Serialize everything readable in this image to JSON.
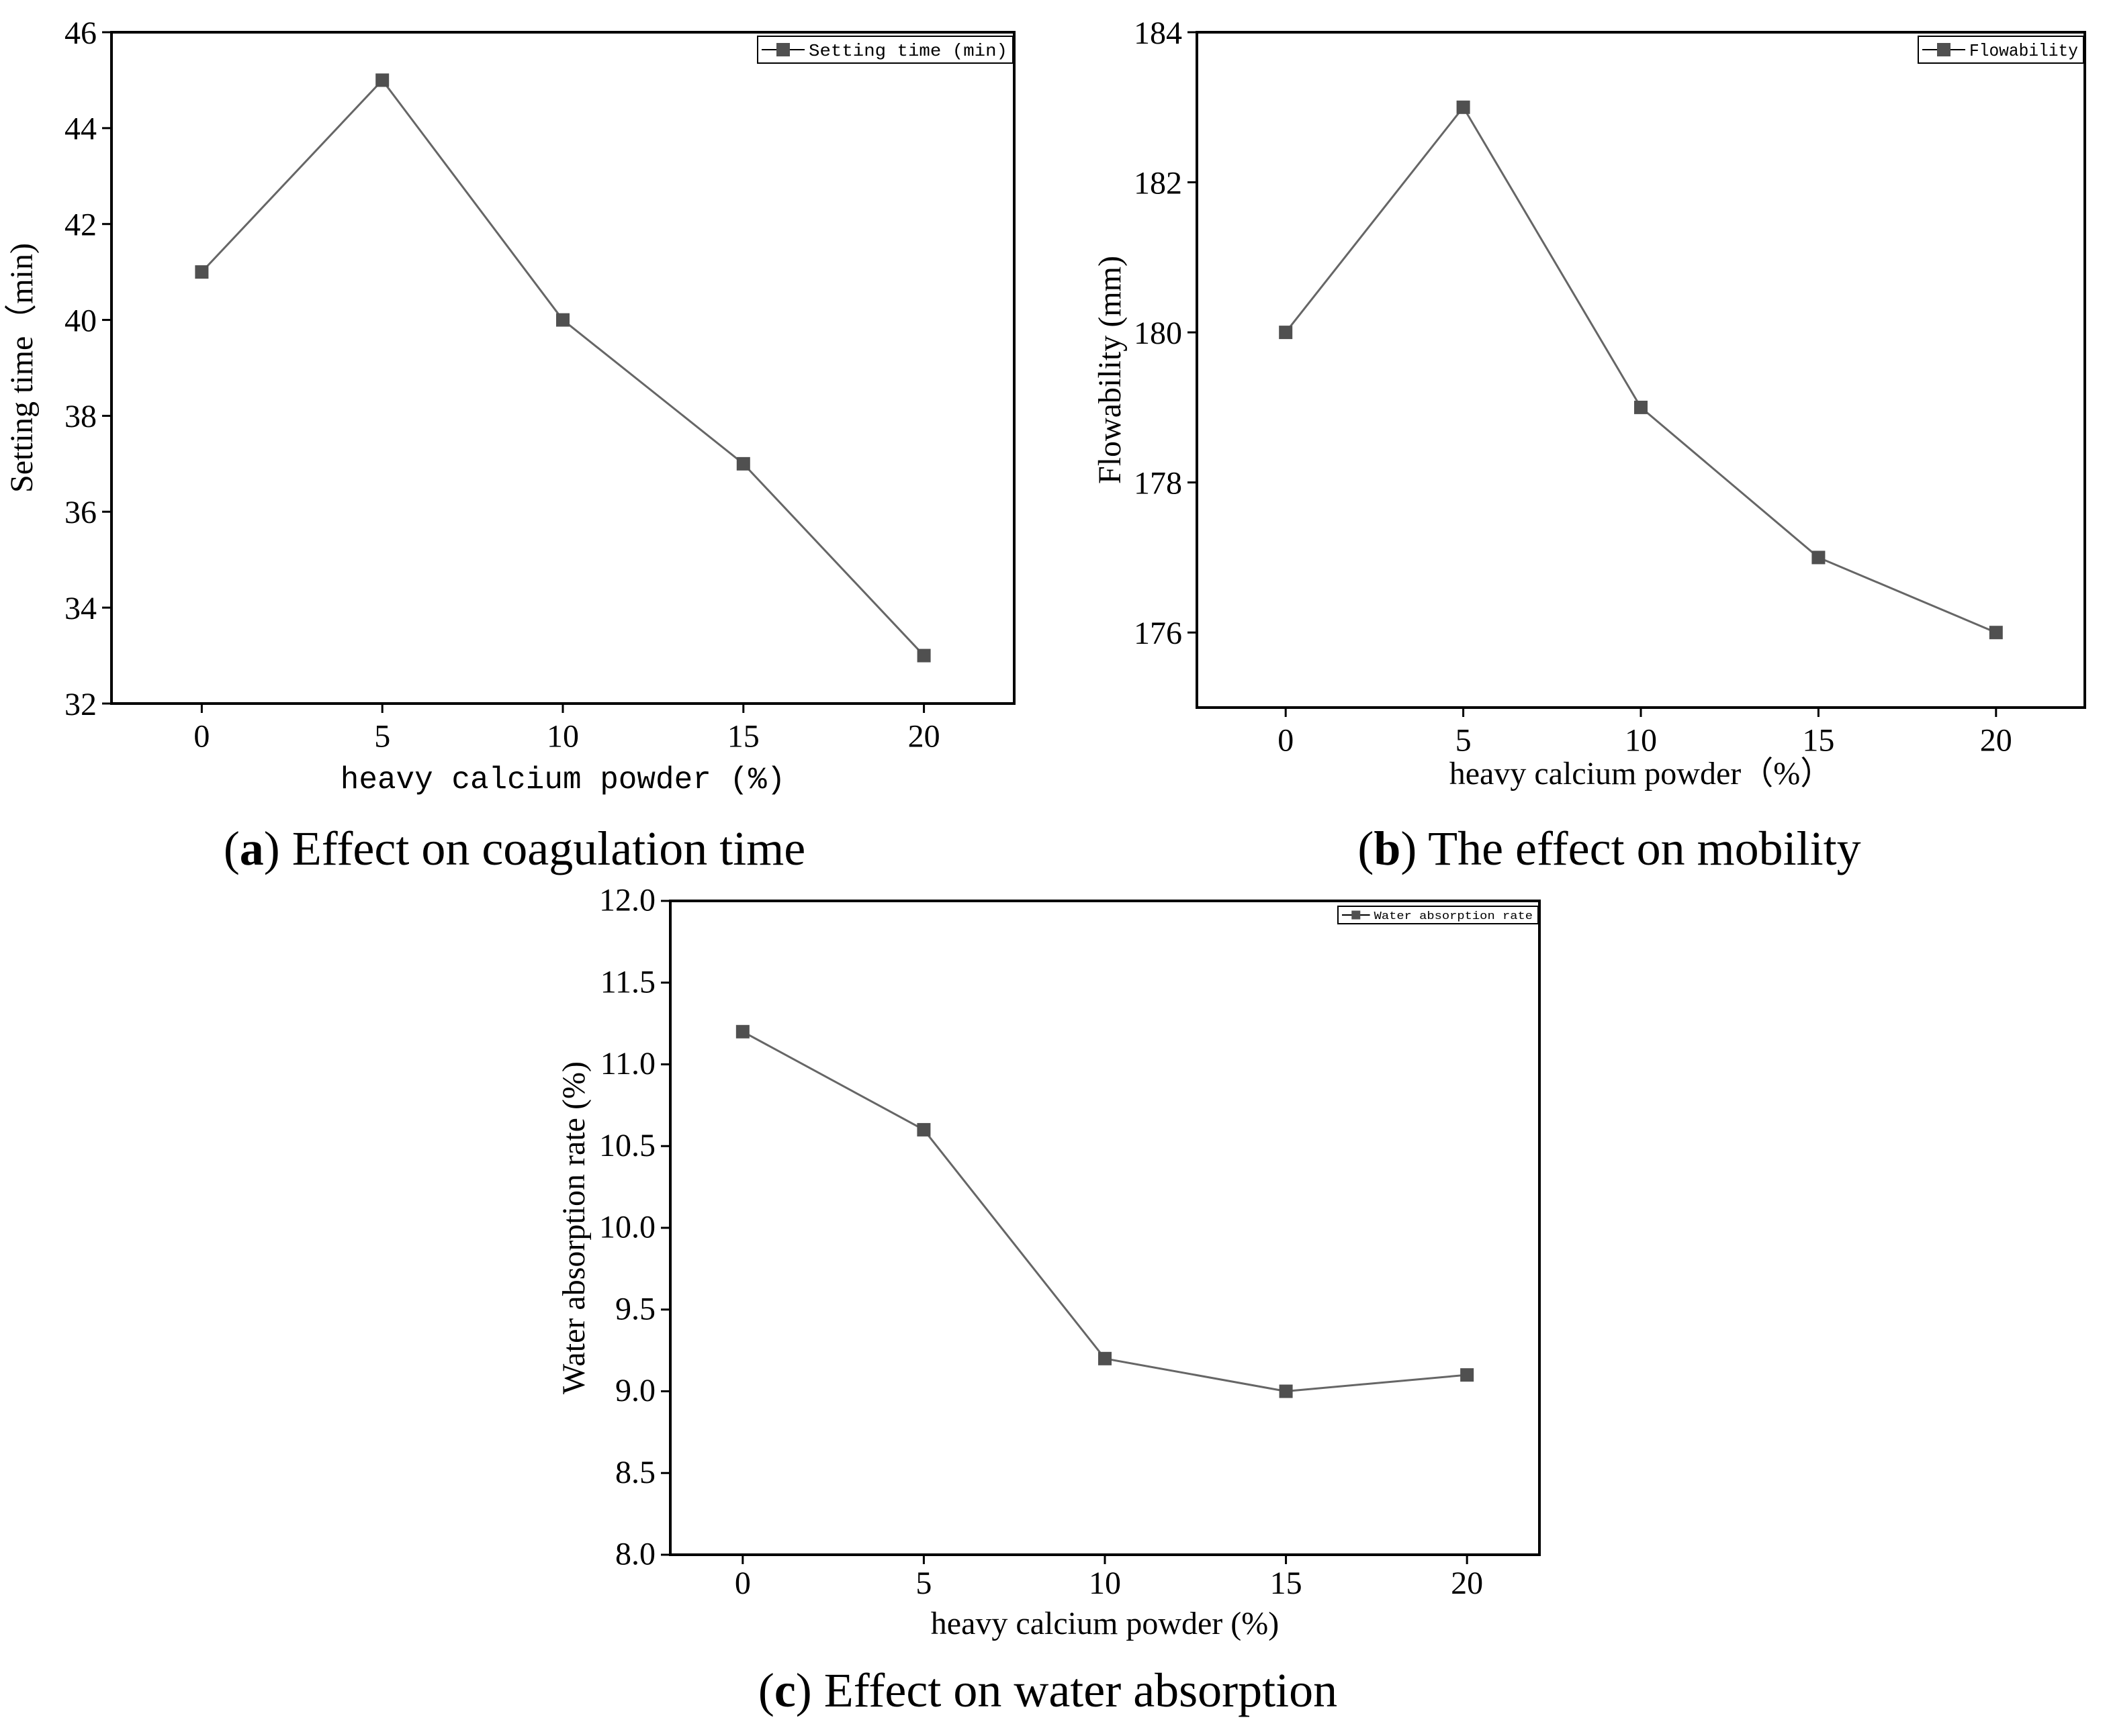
{
  "chart_data": [
    {
      "type": "line",
      "panel": "a",
      "x": [
        0,
        5,
        10,
        15,
        20
      ],
      "series": [
        {
          "name": "Setting time (min)",
          "values": [
            41,
            45,
            40,
            37,
            33
          ]
        }
      ],
      "xlabel": "heavy calcium powder (%)",
      "ylabel": "Setting time（min)",
      "xticks": [
        0,
        5,
        10,
        15,
        20
      ],
      "yticks": [
        32,
        34,
        36,
        38,
        40,
        42,
        44,
        46
      ],
      "xlim": [
        -2.5,
        22.5
      ],
      "ylim": [
        32,
        46
      ],
      "legend": "top-right",
      "caption_letter": "a",
      "caption_text": " Effect on coagulation time"
    },
    {
      "type": "line",
      "panel": "b",
      "x": [
        0,
        5,
        10,
        15,
        20
      ],
      "series": [
        {
          "name": "Flowability",
          "values": [
            180,
            183,
            179,
            177,
            176
          ]
        }
      ],
      "xlabel": "heavy calcium powder（%）",
      "ylabel": "Flowability (mm)",
      "xticks": [
        0,
        5,
        10,
        15,
        20
      ],
      "yticks": [
        176,
        178,
        180,
        182,
        184
      ],
      "xlim": [
        -2.5,
        22.5
      ],
      "ylim": [
        175,
        184
      ],
      "legend": "top-right",
      "caption_letter": "b",
      "caption_text": " The effect on mobility"
    },
    {
      "type": "line",
      "panel": "c",
      "x": [
        0,
        5,
        10,
        15,
        20
      ],
      "series": [
        {
          "name": "Water absorption rate",
          "values": [
            11.2,
            10.6,
            9.2,
            9.0,
            9.1
          ]
        }
      ],
      "xlabel": "heavy calcium powder (%)",
      "ylabel": "Water absorption rate (%)",
      "xticks": [
        0,
        5,
        10,
        15,
        20
      ],
      "yticks": [
        8.0,
        8.5,
        9.0,
        9.5,
        10.0,
        10.5,
        11.0,
        11.5,
        12.0
      ],
      "ytick_decimals": 1,
      "xlim": [
        -2,
        22
      ],
      "ylim": [
        8,
        12
      ],
      "legend": "top-right",
      "caption_letter": "c",
      "caption_text": " Effect on water absorption"
    }
  ]
}
